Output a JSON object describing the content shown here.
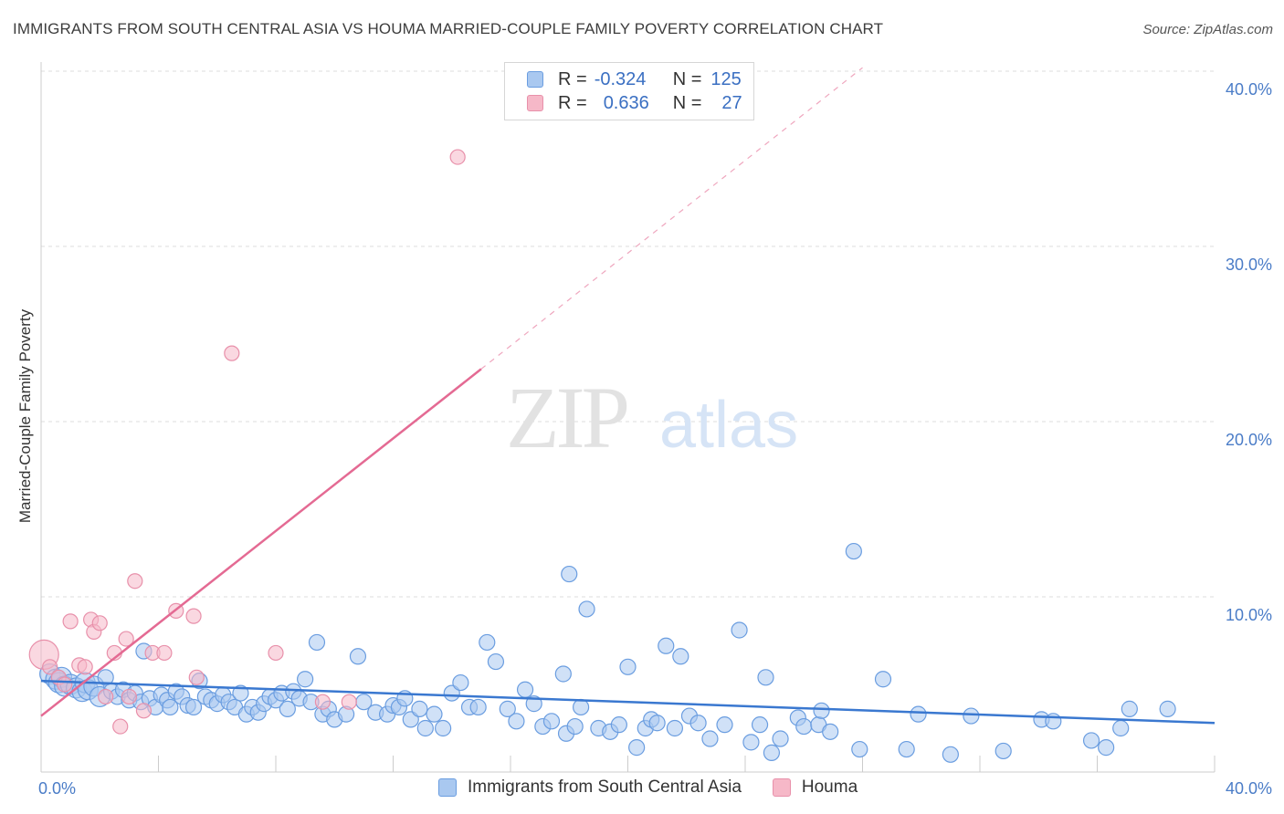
{
  "title": "IMMIGRANTS FROM SOUTH CENTRAL ASIA VS HOUMA MARRIED-COUPLE FAMILY POVERTY CORRELATION CHART",
  "source": "Source: ZipAtlas.com",
  "watermark": {
    "zip": "ZIP",
    "atlas": "atlas"
  },
  "legend": {
    "r_label": "R =",
    "n_label": "N =",
    "series1": {
      "r": "-0.324",
      "n": "125"
    },
    "series2": {
      "r": "0.636",
      "n": "27"
    }
  },
  "bottom_legend": {
    "series1": "Immigrants from South Central Asia",
    "series2": "Houma"
  },
  "colors": {
    "blue_fill": "#a9c8f0",
    "blue_stroke": "#6a9de0",
    "blue_line": "#3a78d0",
    "pink_fill": "#f6b8c8",
    "pink_stroke": "#e890aa",
    "pink_line": "#e46a93",
    "axis_text": "#4a7cc7",
    "grid": "#dddddd"
  },
  "chart_data": {
    "type": "scatter",
    "title": "IMMIGRANTS FROM SOUTH CENTRAL ASIA VS HOUMA MARRIED-COUPLE FAMILY POVERTY CORRELATION CHART",
    "xlabel": "",
    "ylabel": "Married-Couple Family Poverty",
    "xlim": [
      0,
      40
    ],
    "ylim": [
      0,
      40
    ],
    "x_tick_labels": [
      "0.0%",
      "40.0%"
    ],
    "y_ticks": [
      10,
      20,
      30,
      40
    ],
    "y_tick_labels": [
      "10.0%",
      "20.0%",
      "30.0%",
      "40.0%"
    ],
    "series": [
      {
        "name": "Immigrants from South Central Asia",
        "r": -0.324,
        "n": 125,
        "trend": {
          "x": [
            0,
            40
          ],
          "y": [
            5.2,
            2.8
          ]
        },
        "points": [
          [
            0.3,
            5.6
          ],
          [
            0.5,
            5.3
          ],
          [
            0.6,
            5.1
          ],
          [
            0.7,
            5.4
          ],
          [
            0.8,
            4.9
          ],
          [
            1.0,
            5.0
          ],
          [
            1.2,
            4.8
          ],
          [
            1.4,
            4.6
          ],
          [
            1.5,
            5.1
          ],
          [
            1.6,
            4.7
          ],
          [
            1.8,
            4.9
          ],
          [
            2.0,
            4.3
          ],
          [
            2.2,
            5.4
          ],
          [
            2.4,
            4.6
          ],
          [
            2.6,
            4.3
          ],
          [
            2.8,
            4.7
          ],
          [
            3.0,
            4.1
          ],
          [
            3.2,
            4.5
          ],
          [
            3.4,
            4.0
          ],
          [
            3.5,
            6.9
          ],
          [
            3.7,
            4.2
          ],
          [
            3.9,
            3.7
          ],
          [
            4.1,
            4.4
          ],
          [
            4.3,
            4.1
          ],
          [
            4.4,
            3.7
          ],
          [
            4.6,
            4.6
          ],
          [
            4.8,
            4.3
          ],
          [
            5.0,
            3.8
          ],
          [
            5.2,
            3.7
          ],
          [
            5.4,
            5.2
          ],
          [
            5.6,
            4.3
          ],
          [
            5.8,
            4.1
          ],
          [
            6.0,
            3.9
          ],
          [
            6.2,
            4.4
          ],
          [
            6.4,
            4.0
          ],
          [
            6.6,
            3.7
          ],
          [
            6.8,
            4.5
          ],
          [
            7.0,
            3.3
          ],
          [
            7.2,
            3.7
          ],
          [
            7.4,
            3.4
          ],
          [
            7.6,
            3.9
          ],
          [
            7.8,
            4.3
          ],
          [
            8.0,
            4.1
          ],
          [
            8.2,
            4.5
          ],
          [
            8.4,
            3.6
          ],
          [
            8.6,
            4.6
          ],
          [
            8.8,
            4.2
          ],
          [
            9.0,
            5.3
          ],
          [
            9.2,
            4.0
          ],
          [
            9.4,
            7.4
          ],
          [
            9.6,
            3.3
          ],
          [
            9.8,
            3.6
          ],
          [
            10.0,
            3.0
          ],
          [
            10.4,
            3.3
          ],
          [
            10.8,
            6.6
          ],
          [
            11.0,
            4.0
          ],
          [
            11.4,
            3.4
          ],
          [
            11.8,
            3.3
          ],
          [
            12.0,
            3.8
          ],
          [
            12.2,
            3.7
          ],
          [
            12.4,
            4.2
          ],
          [
            12.6,
            3.0
          ],
          [
            12.9,
            3.6
          ],
          [
            13.1,
            2.5
          ],
          [
            13.4,
            3.3
          ],
          [
            13.7,
            2.5
          ],
          [
            14.0,
            4.5
          ],
          [
            14.3,
            5.1
          ],
          [
            14.6,
            3.7
          ],
          [
            14.9,
            3.7
          ],
          [
            15.2,
            7.4
          ],
          [
            15.5,
            6.3
          ],
          [
            15.9,
            3.6
          ],
          [
            16.2,
            2.9
          ],
          [
            16.5,
            4.7
          ],
          [
            16.8,
            3.9
          ],
          [
            17.1,
            2.6
          ],
          [
            17.4,
            2.9
          ],
          [
            17.8,
            5.6
          ],
          [
            17.9,
            2.2
          ],
          [
            18.0,
            11.3
          ],
          [
            18.2,
            2.6
          ],
          [
            18.4,
            3.7
          ],
          [
            18.6,
            9.3
          ],
          [
            19.0,
            2.5
          ],
          [
            19.4,
            2.3
          ],
          [
            19.7,
            2.7
          ],
          [
            20.0,
            6.0
          ],
          [
            20.3,
            1.4
          ],
          [
            20.6,
            2.5
          ],
          [
            20.8,
            3.0
          ],
          [
            21.0,
            2.8
          ],
          [
            21.3,
            7.2
          ],
          [
            21.6,
            2.5
          ],
          [
            21.8,
            6.6
          ],
          [
            22.1,
            3.2
          ],
          [
            22.4,
            2.8
          ],
          [
            22.8,
            1.9
          ],
          [
            23.3,
            2.7
          ],
          [
            23.8,
            8.1
          ],
          [
            24.2,
            1.7
          ],
          [
            24.5,
            2.7
          ],
          [
            24.7,
            5.4
          ],
          [
            24.9,
            1.1
          ],
          [
            25.2,
            1.9
          ],
          [
            25.8,
            3.1
          ],
          [
            26.0,
            2.6
          ],
          [
            26.5,
            2.7
          ],
          [
            26.6,
            3.5
          ],
          [
            26.9,
            2.3
          ],
          [
            27.7,
            12.6
          ],
          [
            27.9,
            1.3
          ],
          [
            28.7,
            5.3
          ],
          [
            29.5,
            1.3
          ],
          [
            29.9,
            3.3
          ],
          [
            31.0,
            1.0
          ],
          [
            31.7,
            3.2
          ],
          [
            32.8,
            1.2
          ],
          [
            34.1,
            3.0
          ],
          [
            34.5,
            2.9
          ],
          [
            35.8,
            1.8
          ],
          [
            36.3,
            1.4
          ],
          [
            36.8,
            2.5
          ],
          [
            37.1,
            3.6
          ],
          [
            38.4,
            3.6
          ]
        ]
      },
      {
        "name": "Houma",
        "r": 0.636,
        "n": 27,
        "trend": {
          "x": [
            0,
            15
          ],
          "y": [
            3.2,
            23.0
          ],
          "dashed_to": {
            "x": 28,
            "y": 40.2
          }
        },
        "points": [
          [
            0.1,
            6.7
          ],
          [
            0.3,
            6.0
          ],
          [
            0.6,
            5.4
          ],
          [
            0.8,
            5.0
          ],
          [
            1.0,
            8.6
          ],
          [
            1.3,
            6.1
          ],
          [
            1.5,
            6.0
          ],
          [
            1.7,
            8.7
          ],
          [
            1.8,
            8.0
          ],
          [
            2.0,
            8.5
          ],
          [
            2.2,
            4.3
          ],
          [
            2.5,
            6.8
          ],
          [
            2.7,
            2.6
          ],
          [
            2.9,
            7.6
          ],
          [
            3.0,
            4.3
          ],
          [
            3.2,
            10.9
          ],
          [
            3.5,
            3.5
          ],
          [
            3.8,
            6.8
          ],
          [
            4.2,
            6.8
          ],
          [
            4.6,
            9.2
          ],
          [
            5.2,
            8.9
          ],
          [
            5.3,
            5.4
          ],
          [
            6.5,
            23.9
          ],
          [
            8.0,
            6.8
          ],
          [
            9.6,
            4.0
          ],
          [
            10.5,
            4.0
          ],
          [
            14.2,
            35.1
          ]
        ]
      }
    ]
  }
}
